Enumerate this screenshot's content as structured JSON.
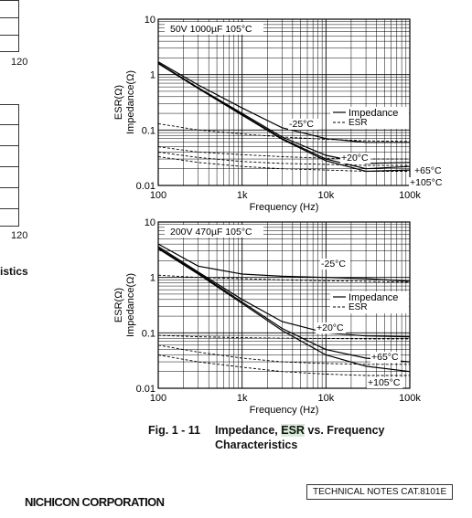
{
  "left_column": {
    "label_top": "120",
    "label_bottom": "120",
    "cut_text": "istics"
  },
  "chart_data": [
    {
      "type": "line",
      "title": "50V 1000µF 105°C",
      "xlabel": "Frequency (Hz)",
      "ylabel_lines": [
        "ESR(Ω)",
        "Impedance(Ω)"
      ],
      "x_scale": "log",
      "y_scale": "log",
      "xlim": [
        100,
        100000
      ],
      "ylim": [
        0.01,
        10
      ],
      "x_ticks": [
        "100",
        "1k",
        "10k",
        "100k"
      ],
      "y_ticks": [
        "10",
        "1",
        "0.1",
        "0.01"
      ],
      "legend": {
        "impedance": "Impedance",
        "esr": "ESR",
        "placement": "right"
      },
      "annotations": [
        "-25°C",
        "+20°C",
        "+65°C",
        "+105°C"
      ],
      "series": [
        {
          "name": "-25°C",
          "kind": "impedance",
          "x": [
            100,
            300,
            1000,
            3000,
            10000,
            30000,
            100000
          ],
          "y": [
            1.7,
            0.65,
            0.25,
            0.11,
            0.07,
            0.06,
            0.06
          ]
        },
        {
          "name": "+20°C",
          "kind": "impedance",
          "x": [
            100,
            300,
            1000,
            3000,
            10000,
            30000,
            100000
          ],
          "y": [
            1.62,
            0.58,
            0.2,
            0.075,
            0.035,
            0.025,
            0.026
          ]
        },
        {
          "name": "+65°C",
          "kind": "impedance",
          "x": [
            100,
            300,
            1000,
            3000,
            10000,
            30000,
            100000
          ],
          "y": [
            1.6,
            0.57,
            0.19,
            0.07,
            0.03,
            0.02,
            0.022
          ]
        },
        {
          "name": "+105°C",
          "kind": "impedance",
          "x": [
            100,
            300,
            1000,
            3000,
            10000,
            30000,
            100000
          ],
          "y": [
            1.58,
            0.56,
            0.185,
            0.068,
            0.028,
            0.018,
            0.019
          ]
        },
        {
          "name": "-25°C",
          "kind": "esr",
          "x": [
            100,
            300,
            1000,
            3000,
            10000,
            30000,
            100000
          ],
          "y": [
            0.13,
            0.1,
            0.085,
            0.075,
            0.068,
            0.064,
            0.062
          ]
        },
        {
          "name": "+20°C",
          "kind": "esr",
          "x": [
            100,
            300,
            1000,
            3000,
            10000,
            30000,
            100000
          ],
          "y": [
            0.05,
            0.04,
            0.036,
            0.033,
            0.031,
            0.03,
            0.03
          ]
        },
        {
          "name": "+65°C",
          "kind": "esr",
          "x": [
            100,
            300,
            1000,
            3000,
            10000,
            30000,
            100000
          ],
          "y": [
            0.04,
            0.032,
            0.027,
            0.025,
            0.024,
            0.023,
            0.023
          ]
        },
        {
          "name": "+105°C",
          "kind": "esr",
          "x": [
            100,
            300,
            1000,
            3000,
            10000,
            30000,
            100000
          ],
          "y": [
            0.033,
            0.026,
            0.022,
            0.02,
            0.019,
            0.018,
            0.018
          ]
        }
      ]
    },
    {
      "type": "line",
      "title": "200V 470µF 105°C",
      "xlabel": "Frequency (Hz)",
      "ylabel_lines": [
        "ESR(Ω)",
        "Impedance(Ω)"
      ],
      "x_scale": "log",
      "y_scale": "log",
      "xlim": [
        100,
        100000
      ],
      "ylim": [
        0.01,
        10
      ],
      "x_ticks": [
        "100",
        "1k",
        "10k",
        "100k"
      ],
      "y_ticks": [
        "10",
        "1",
        "0.1",
        "0.01"
      ],
      "legend": {
        "impedance": "Impedance",
        "esr": "ESR",
        "placement": "right"
      },
      "annotations": [
        "-25°C",
        "+20°C",
        "+65°C",
        "+105°C"
      ],
      "series": [
        {
          "name": "-25°C",
          "kind": "impedance",
          "x": [
            100,
            300,
            1000,
            3000,
            10000,
            30000,
            100000
          ],
          "y": [
            4.0,
            1.6,
            1.15,
            1.05,
            1.0,
            0.95,
            0.85
          ]
        },
        {
          "name": "+20°C",
          "kind": "impedance",
          "x": [
            100,
            300,
            1000,
            3000,
            10000,
            30000,
            100000
          ],
          "y": [
            3.6,
            1.25,
            0.4,
            0.16,
            0.1,
            0.088,
            0.085
          ]
        },
        {
          "name": "+65°C",
          "kind": "impedance",
          "x": [
            100,
            300,
            1000,
            3000,
            10000,
            30000,
            100000
          ],
          "y": [
            3.4,
            1.2,
            0.36,
            0.12,
            0.05,
            0.035,
            0.03
          ]
        },
        {
          "name": "+105°C",
          "kind": "impedance",
          "x": [
            100,
            300,
            1000,
            3000,
            10000,
            30000,
            100000
          ],
          "y": [
            3.3,
            1.15,
            0.34,
            0.11,
            0.04,
            0.025,
            0.02
          ]
        },
        {
          "name": "-25°C",
          "kind": "esr",
          "x": [
            100,
            300,
            1000,
            3000,
            10000,
            30000,
            100000
          ],
          "y": [
            1.1,
            1.0,
            0.95,
            0.9,
            0.87,
            0.85,
            0.82
          ]
        },
        {
          "name": "+20°C",
          "kind": "esr",
          "x": [
            100,
            300,
            1000,
            3000,
            10000,
            30000,
            100000
          ],
          "y": [
            0.09,
            0.085,
            0.082,
            0.08,
            0.079,
            0.078,
            0.078
          ]
        },
        {
          "name": "+65°C",
          "kind": "esr",
          "x": [
            100,
            300,
            1000,
            3000,
            10000,
            30000,
            100000
          ],
          "y": [
            0.06,
            0.045,
            0.035,
            0.03,
            0.028,
            0.027,
            0.027
          ]
        },
        {
          "name": "+105°C",
          "kind": "esr",
          "x": [
            100,
            300,
            1000,
            3000,
            10000,
            30000,
            100000
          ],
          "y": [
            0.04,
            0.03,
            0.024,
            0.02,
            0.018,
            0.017,
            0.017
          ]
        }
      ]
    }
  ],
  "caption": {
    "fig_number": "Fig. 1 - 11",
    "text_before": "Impedance, ",
    "text_highlight": "ESR",
    "text_after": " vs. Frequency",
    "line2": "Characteristics"
  },
  "footer": {
    "tech_notes": "TECHNICAL NOTES  CAT.8101E",
    "company": "NICHICON CORPORATION"
  }
}
